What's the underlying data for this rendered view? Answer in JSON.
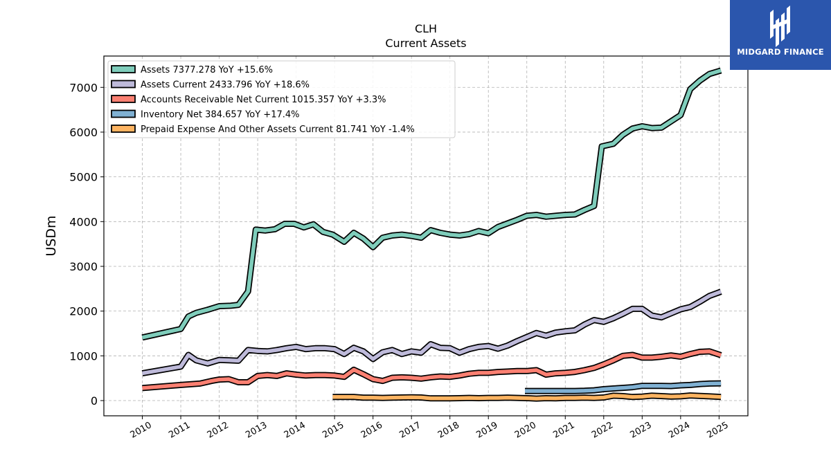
{
  "logo": {
    "text": "MIDGARD FINANCE"
  },
  "chart_data": {
    "type": "line",
    "title": "CLH",
    "subtitle": "Current  Assets",
    "xlabel": "",
    "ylabel": "USDm",
    "ylim": [
      -340,
      7700
    ],
    "xlim": [
      2009.0,
      2025.75
    ],
    "grid": true,
    "legend_position": "top-left",
    "x_ticks": [
      "2010",
      "2011",
      "2012",
      "2013",
      "2014",
      "2015",
      "2016",
      "2017",
      "2018",
      "2019",
      "2020",
      "2021",
      "2022",
      "2023",
      "2024",
      "2025"
    ],
    "y_ticks": [
      "0",
      "1000",
      "2000",
      "3000",
      "4000",
      "5000",
      "6000",
      "7000"
    ],
    "series": [
      {
        "name": "Assets",
        "legend": "Assets  7377.278 YoY +15.6%",
        "color": "#7fcdbb",
        "points": [
          [
            2010.0,
            1410
          ],
          [
            2011.0,
            1600
          ],
          [
            2011.2,
            1880
          ],
          [
            2011.4,
            1960
          ],
          [
            2011.7,
            2030
          ],
          [
            2012.0,
            2110
          ],
          [
            2012.3,
            2120
          ],
          [
            2012.5,
            2140
          ],
          [
            2012.75,
            2440
          ],
          [
            2012.95,
            3820
          ],
          [
            2013.2,
            3800
          ],
          [
            2013.45,
            3830
          ],
          [
            2013.7,
            3950
          ],
          [
            2013.95,
            3950
          ],
          [
            2014.2,
            3870
          ],
          [
            2014.45,
            3940
          ],
          [
            2014.7,
            3770
          ],
          [
            2014.95,
            3710
          ],
          [
            2015.25,
            3550
          ],
          [
            2015.5,
            3750
          ],
          [
            2015.75,
            3620
          ],
          [
            2016.0,
            3430
          ],
          [
            2016.25,
            3640
          ],
          [
            2016.5,
            3690
          ],
          [
            2016.75,
            3710
          ],
          [
            2017.0,
            3680
          ],
          [
            2017.25,
            3640
          ],
          [
            2017.5,
            3810
          ],
          [
            2017.75,
            3750
          ],
          [
            2018.0,
            3710
          ],
          [
            2018.25,
            3690
          ],
          [
            2018.5,
            3720
          ],
          [
            2018.75,
            3790
          ],
          [
            2019.0,
            3740
          ],
          [
            2019.25,
            3880
          ],
          [
            2019.5,
            3960
          ],
          [
            2019.75,
            4040
          ],
          [
            2020.0,
            4130
          ],
          [
            2020.25,
            4150
          ],
          [
            2020.5,
            4110
          ],
          [
            2020.75,
            4130
          ],
          [
            2021.0,
            4150
          ],
          [
            2021.25,
            4160
          ],
          [
            2021.5,
            4260
          ],
          [
            2021.75,
            4350
          ],
          [
            2021.95,
            5680
          ],
          [
            2022.25,
            5740
          ],
          [
            2022.5,
            5940
          ],
          [
            2022.75,
            6080
          ],
          [
            2023.0,
            6130
          ],
          [
            2023.25,
            6090
          ],
          [
            2023.5,
            6100
          ],
          [
            2023.75,
            6240
          ],
          [
            2024.0,
            6380
          ],
          [
            2024.25,
            6960
          ],
          [
            2024.5,
            7150
          ],
          [
            2024.75,
            7300
          ],
          [
            2025.05,
            7377
          ]
        ]
      },
      {
        "name": "Assets Current",
        "legend": "Assets Current  2433.796 YoY +18.6%",
        "color": "#bebada",
        "points": [
          [
            2010.0,
            610
          ],
          [
            2011.0,
            760
          ],
          [
            2011.2,
            1020
          ],
          [
            2011.4,
            900
          ],
          [
            2011.7,
            830
          ],
          [
            2012.0,
            910
          ],
          [
            2012.25,
            900
          ],
          [
            2012.5,
            890
          ],
          [
            2012.75,
            1130
          ],
          [
            2013.0,
            1110
          ],
          [
            2013.25,
            1100
          ],
          [
            2013.5,
            1130
          ],
          [
            2013.75,
            1170
          ],
          [
            2014.0,
            1200
          ],
          [
            2014.25,
            1150
          ],
          [
            2014.5,
            1170
          ],
          [
            2014.75,
            1170
          ],
          [
            2015.0,
            1150
          ],
          [
            2015.25,
            1040
          ],
          [
            2015.5,
            1180
          ],
          [
            2015.75,
            1100
          ],
          [
            2016.0,
            930
          ],
          [
            2016.25,
            1080
          ],
          [
            2016.5,
            1130
          ],
          [
            2016.75,
            1040
          ],
          [
            2017.0,
            1100
          ],
          [
            2017.25,
            1070
          ],
          [
            2017.5,
            1260
          ],
          [
            2017.75,
            1180
          ],
          [
            2018.0,
            1170
          ],
          [
            2018.25,
            1070
          ],
          [
            2018.5,
            1150
          ],
          [
            2018.75,
            1200
          ],
          [
            2019.0,
            1220
          ],
          [
            2019.25,
            1160
          ],
          [
            2019.5,
            1230
          ],
          [
            2019.75,
            1330
          ],
          [
            2020.0,
            1420
          ],
          [
            2020.25,
            1510
          ],
          [
            2020.5,
            1450
          ],
          [
            2020.75,
            1520
          ],
          [
            2021.0,
            1550
          ],
          [
            2021.25,
            1570
          ],
          [
            2021.5,
            1700
          ],
          [
            2021.75,
            1800
          ],
          [
            2022.0,
            1760
          ],
          [
            2022.25,
            1840
          ],
          [
            2022.5,
            1940
          ],
          [
            2022.75,
            2050
          ],
          [
            2023.0,
            2050
          ],
          [
            2023.25,
            1900
          ],
          [
            2023.5,
            1860
          ],
          [
            2023.75,
            1950
          ],
          [
            2024.0,
            2040
          ],
          [
            2024.25,
            2090
          ],
          [
            2024.5,
            2210
          ],
          [
            2024.75,
            2340
          ],
          [
            2025.05,
            2434
          ]
        ]
      },
      {
        "name": "Accounts Receivable Net Current",
        "legend": "Accounts Receivable Net Current  1015.357 YoY +3.3%",
        "color": "#fb8072",
        "points": [
          [
            2010.0,
            280
          ],
          [
            2011.0,
            350
          ],
          [
            2011.5,
            380
          ],
          [
            2011.8,
            440
          ],
          [
            2012.0,
            470
          ],
          [
            2012.25,
            480
          ],
          [
            2012.5,
            410
          ],
          [
            2012.75,
            410
          ],
          [
            2013.0,
            550
          ],
          [
            2013.25,
            570
          ],
          [
            2013.5,
            550
          ],
          [
            2013.75,
            610
          ],
          [
            2014.0,
            580
          ],
          [
            2014.25,
            560
          ],
          [
            2014.5,
            570
          ],
          [
            2014.75,
            570
          ],
          [
            2015.0,
            560
          ],
          [
            2015.25,
            530
          ],
          [
            2015.5,
            690
          ],
          [
            2015.75,
            590
          ],
          [
            2016.0,
            480
          ],
          [
            2016.25,
            440
          ],
          [
            2016.5,
            510
          ],
          [
            2016.75,
            520
          ],
          [
            2017.0,
            510
          ],
          [
            2017.25,
            490
          ],
          [
            2017.5,
            520
          ],
          [
            2017.75,
            540
          ],
          [
            2018.0,
            530
          ],
          [
            2018.25,
            560
          ],
          [
            2018.5,
            600
          ],
          [
            2018.75,
            620
          ],
          [
            2019.0,
            620
          ],
          [
            2019.25,
            640
          ],
          [
            2019.5,
            650
          ],
          [
            2019.75,
            660
          ],
          [
            2020.0,
            660
          ],
          [
            2020.25,
            680
          ],
          [
            2020.5,
            580
          ],
          [
            2020.75,
            610
          ],
          [
            2021.0,
            620
          ],
          [
            2021.25,
            640
          ],
          [
            2021.5,
            680
          ],
          [
            2021.75,
            730
          ],
          [
            2022.0,
            810
          ],
          [
            2022.25,
            900
          ],
          [
            2022.5,
            1000
          ],
          [
            2022.75,
            1020
          ],
          [
            2023.0,
            960
          ],
          [
            2023.25,
            960
          ],
          [
            2023.5,
            980
          ],
          [
            2023.75,
            1010
          ],
          [
            2024.0,
            980
          ],
          [
            2024.25,
            1040
          ],
          [
            2024.5,
            1090
          ],
          [
            2024.75,
            1100
          ],
          [
            2025.05,
            1015
          ]
        ]
      },
      {
        "name": "Inventory Net",
        "legend": "Inventory Net  384.657 YoY +17.4%",
        "color": "#80b1d3",
        "points": [
          [
            2019.95,
            215
          ],
          [
            2020.25,
            215
          ],
          [
            2020.5,
            215
          ],
          [
            2020.75,
            215
          ],
          [
            2021.0,
            215
          ],
          [
            2021.25,
            215
          ],
          [
            2021.5,
            220
          ],
          [
            2021.75,
            230
          ],
          [
            2022.0,
            255
          ],
          [
            2022.25,
            270
          ],
          [
            2022.5,
            285
          ],
          [
            2022.75,
            300
          ],
          [
            2023.0,
            330
          ],
          [
            2023.25,
            330
          ],
          [
            2023.5,
            330
          ],
          [
            2023.75,
            325
          ],
          [
            2024.0,
            340
          ],
          [
            2024.25,
            350
          ],
          [
            2024.5,
            370
          ],
          [
            2024.75,
            380
          ],
          [
            2025.05,
            385
          ]
        ]
      },
      {
        "name": "Prepaid Expense And Other Assets Current",
        "legend": "Prepaid Expense And Other Assets Current  81.741 YoY -1.4%",
        "color": "#fdb462",
        "points": [
          [
            2014.95,
            80
          ],
          [
            2015.25,
            80
          ],
          [
            2015.5,
            80
          ],
          [
            2015.75,
            65
          ],
          [
            2016.0,
            65
          ],
          [
            2016.25,
            60
          ],
          [
            2016.5,
            65
          ],
          [
            2016.75,
            70
          ],
          [
            2017.0,
            75
          ],
          [
            2017.25,
            70
          ],
          [
            2017.5,
            50
          ],
          [
            2017.75,
            50
          ],
          [
            2018.0,
            50
          ],
          [
            2018.25,
            55
          ],
          [
            2018.5,
            60
          ],
          [
            2018.75,
            55
          ],
          [
            2019.0,
            60
          ],
          [
            2019.25,
            60
          ],
          [
            2019.5,
            65
          ],
          [
            2019.75,
            60
          ],
          [
            2020.0,
            55
          ],
          [
            2020.25,
            45
          ],
          [
            2020.5,
            55
          ],
          [
            2020.75,
            50
          ],
          [
            2021.0,
            60
          ],
          [
            2021.25,
            60
          ],
          [
            2021.5,
            65
          ],
          [
            2021.75,
            60
          ],
          [
            2022.0,
            70
          ],
          [
            2022.25,
            110
          ],
          [
            2022.5,
            100
          ],
          [
            2022.75,
            80
          ],
          [
            2023.0,
            90
          ],
          [
            2023.25,
            110
          ],
          [
            2023.5,
            100
          ],
          [
            2023.75,
            90
          ],
          [
            2024.0,
            95
          ],
          [
            2024.25,
            115
          ],
          [
            2024.5,
            105
          ],
          [
            2024.75,
            95
          ],
          [
            2025.05,
            82
          ]
        ]
      }
    ]
  }
}
